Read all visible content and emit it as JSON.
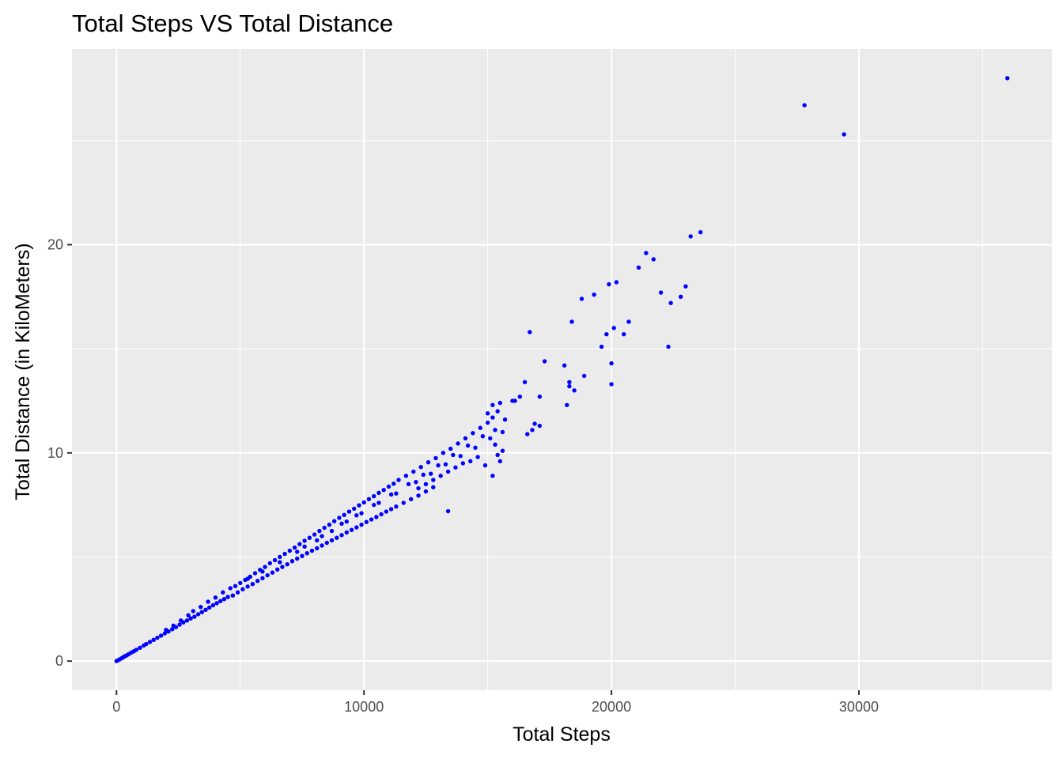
{
  "chart_data": {
    "type": "scatter",
    "title": "Total Steps VS Total Distance",
    "xlabel": "Total Steps",
    "ylabel": "Total Distance (in KiloMeters)",
    "xlim": [
      -1800,
      37800
    ],
    "ylim": [
      -1.4,
      29.4
    ],
    "xticks": [
      0,
      10000,
      20000,
      30000
    ],
    "xtick_labels": [
      "0",
      "10000",
      "20000",
      "30000"
    ],
    "xminor": [
      5000,
      15000,
      25000,
      35000
    ],
    "yticks": [
      0,
      10,
      20
    ],
    "ytick_labels": [
      "0",
      "10",
      "20"
    ],
    "yminor": [
      5,
      15,
      25
    ],
    "grid": true,
    "panel_background": "#ebebeb",
    "point_color": "#0000ff",
    "series": [
      {
        "points": [
          [
            0,
            0
          ],
          [
            60,
            0.04
          ],
          [
            120,
            0.08
          ],
          [
            200,
            0.13
          ],
          [
            280,
            0.19
          ],
          [
            350,
            0.24
          ],
          [
            420,
            0.28
          ],
          [
            500,
            0.34
          ],
          [
            600,
            0.41
          ],
          [
            700,
            0.47
          ],
          [
            800,
            0.54
          ],
          [
            950,
            0.64
          ],
          [
            1100,
            0.75
          ],
          [
            1200,
            0.82
          ],
          [
            1350,
            0.92
          ],
          [
            1500,
            1.02
          ],
          [
            1650,
            1.12
          ],
          [
            1800,
            1.22
          ],
          [
            1950,
            1.33
          ],
          [
            2100,
            1.42
          ],
          [
            2250,
            1.53
          ],
          [
            2400,
            1.63
          ],
          [
            2550,
            1.75
          ],
          [
            2700,
            1.86
          ],
          [
            2850,
            1.95
          ],
          [
            3000,
            2.05
          ],
          [
            3150,
            2.13
          ],
          [
            3300,
            2.25
          ],
          [
            3450,
            2.35
          ],
          [
            3600,
            2.46
          ],
          [
            3750,
            2.57
          ],
          [
            3900,
            2.68
          ],
          [
            4050,
            2.78
          ],
          [
            4200,
            2.88
          ],
          [
            4350,
            2.98
          ],
          [
            4500,
            3.08
          ],
          [
            2000,
            1.5
          ],
          [
            2300,
            1.7
          ],
          [
            2600,
            1.95
          ],
          [
            2900,
            2.2
          ],
          [
            3100,
            2.4
          ],
          [
            3400,
            2.6
          ],
          [
            3700,
            2.85
          ],
          [
            4000,
            3.05
          ],
          [
            4300,
            3.3
          ],
          [
            4600,
            3.5
          ],
          [
            4700,
            3.15
          ],
          [
            4900,
            3.3
          ],
          [
            5100,
            3.45
          ],
          [
            5300,
            3.58
          ],
          [
            5500,
            3.7
          ],
          [
            5700,
            3.85
          ],
          [
            5900,
            3.98
          ],
          [
            6100,
            4.12
          ],
          [
            6300,
            4.25
          ],
          [
            6500,
            4.4
          ],
          [
            6700,
            4.52
          ],
          [
            6900,
            4.65
          ],
          [
            7100,
            4.8
          ],
          [
            7300,
            4.92
          ],
          [
            7500,
            5.05
          ],
          [
            7700,
            5.18
          ],
          [
            7900,
            5.3
          ],
          [
            8100,
            5.42
          ],
          [
            8300,
            5.55
          ],
          [
            8500,
            5.68
          ],
          [
            8700,
            5.8
          ],
          [
            8900,
            5.92
          ],
          [
            9100,
            6.05
          ],
          [
            9300,
            6.18
          ],
          [
            9500,
            6.3
          ],
          [
            9700,
            6.42
          ],
          [
            9900,
            6.55
          ],
          [
            10100,
            6.68
          ],
          [
            10300,
            6.8
          ],
          [
            10500,
            6.92
          ],
          [
            10700,
            7.05
          ],
          [
            10900,
            7.18
          ],
          [
            11100,
            7.3
          ],
          [
            11300,
            7.42
          ],
          [
            11600,
            7.6
          ],
          [
            11900,
            7.78
          ],
          [
            12200,
            7.95
          ],
          [
            12500,
            8.15
          ],
          [
            12800,
            8.35
          ],
          [
            4800,
            3.6
          ],
          [
            5000,
            3.75
          ],
          [
            5200,
            3.9
          ],
          [
            5400,
            4.05
          ],
          [
            5600,
            4.22
          ],
          [
            5800,
            4.38
          ],
          [
            6000,
            4.52
          ],
          [
            6200,
            4.7
          ],
          [
            6400,
            4.85
          ],
          [
            6600,
            5.0
          ],
          [
            6800,
            5.15
          ],
          [
            7000,
            5.3
          ],
          [
            7200,
            5.45
          ],
          [
            7400,
            5.62
          ],
          [
            7600,
            5.78
          ],
          [
            7800,
            5.92
          ],
          [
            8000,
            6.08
          ],
          [
            8200,
            6.25
          ],
          [
            8400,
            6.4
          ],
          [
            8600,
            6.55
          ],
          [
            8800,
            6.72
          ],
          [
            9000,
            6.88
          ],
          [
            9200,
            7.02
          ],
          [
            9400,
            7.18
          ],
          [
            9600,
            7.32
          ],
          [
            9800,
            7.48
          ],
          [
            10000,
            7.62
          ],
          [
            10200,
            7.78
          ],
          [
            10400,
            7.92
          ],
          [
            10600,
            8.08
          ],
          [
            10800,
            8.22
          ],
          [
            11000,
            8.38
          ],
          [
            11200,
            8.52
          ],
          [
            11400,
            8.7
          ],
          [
            11700,
            8.9
          ],
          [
            12000,
            9.1
          ],
          [
            12300,
            9.32
          ],
          [
            12600,
            9.55
          ],
          [
            12900,
            9.75
          ],
          [
            13200,
            10.0
          ],
          [
            13500,
            10.2
          ],
          [
            13800,
            10.45
          ],
          [
            14100,
            10.7
          ],
          [
            14400,
            10.95
          ],
          [
            14700,
            11.2
          ],
          [
            15000,
            11.45
          ],
          [
            15200,
            11.7
          ],
          [
            15400,
            12.0
          ],
          [
            5300,
            3.95
          ],
          [
            5900,
            4.3
          ],
          [
            6600,
            4.75
          ],
          [
            7300,
            5.25
          ],
          [
            8100,
            5.8
          ],
          [
            8700,
            6.25
          ],
          [
            9300,
            6.7
          ],
          [
            9900,
            7.1
          ],
          [
            10600,
            7.6
          ],
          [
            11300,
            8.05
          ],
          [
            12100,
            8.6
          ],
          [
            12700,
            9.0
          ],
          [
            13300,
            9.45
          ],
          [
            13900,
            9.85
          ],
          [
            14500,
            10.25
          ],
          [
            15100,
            10.7
          ],
          [
            7600,
            5.5
          ],
          [
            8300,
            6.0
          ],
          [
            9100,
            6.6
          ],
          [
            9700,
            7.0
          ],
          [
            10400,
            7.5
          ],
          [
            11100,
            8.0
          ],
          [
            11800,
            8.5
          ],
          [
            12400,
            8.95
          ],
          [
            13000,
            9.4
          ],
          [
            13600,
            9.9
          ],
          [
            14200,
            10.35
          ],
          [
            14800,
            10.8
          ],
          [
            15300,
            11.1
          ],
          [
            12200,
            8.3
          ],
          [
            12500,
            8.5
          ],
          [
            12800,
            8.7
          ],
          [
            13100,
            8.9
          ],
          [
            13400,
            9.1
          ],
          [
            13700,
            9.3
          ],
          [
            14000,
            9.5
          ],
          [
            14300,
            9.6
          ],
          [
            14600,
            9.8
          ],
          [
            14900,
            9.4
          ],
          [
            15200,
            8.9
          ],
          [
            15400,
            9.9
          ],
          [
            15600,
            10.1
          ],
          [
            15500,
            9.6
          ],
          [
            15300,
            10.4
          ],
          [
            13400,
            7.2
          ],
          [
            15000,
            11.9
          ],
          [
            15200,
            12.3
          ],
          [
            15500,
            12.4
          ],
          [
            15700,
            11.6
          ],
          [
            15600,
            11.0
          ],
          [
            16000,
            12.5
          ],
          [
            16300,
            12.7
          ],
          [
            16500,
            13.4
          ],
          [
            16100,
            12.5
          ],
          [
            16600,
            10.9
          ],
          [
            16800,
            11.1
          ],
          [
            16900,
            11.4
          ],
          [
            17100,
            11.3
          ],
          [
            17100,
            12.7
          ],
          [
            16700,
            15.8
          ],
          [
            17300,
            14.4
          ],
          [
            18100,
            14.2
          ],
          [
            18200,
            12.3
          ],
          [
            18300,
            13.2
          ],
          [
            18300,
            13.4
          ],
          [
            18400,
            16.3
          ],
          [
            18500,
            13.0
          ],
          [
            18800,
            17.4
          ],
          [
            18900,
            13.7
          ],
          [
            19300,
            17.6
          ],
          [
            19600,
            15.1
          ],
          [
            19800,
            15.7
          ],
          [
            19900,
            18.1
          ],
          [
            20000,
            13.3
          ],
          [
            20000,
            14.3
          ],
          [
            20100,
            16.0
          ],
          [
            20200,
            18.2
          ],
          [
            20500,
            15.7
          ],
          [
            20700,
            16.3
          ],
          [
            21100,
            18.9
          ],
          [
            21400,
            19.6
          ],
          [
            21700,
            19.3
          ],
          [
            22000,
            17.7
          ],
          [
            22300,
            15.1
          ],
          [
            22400,
            17.2
          ],
          [
            22800,
            17.5
          ],
          [
            23000,
            18.0
          ],
          [
            23200,
            20.4
          ],
          [
            23600,
            20.6
          ],
          [
            27800,
            26.7
          ],
          [
            29400,
            25.3
          ],
          [
            36000,
            28.0
          ]
        ]
      }
    ]
  }
}
